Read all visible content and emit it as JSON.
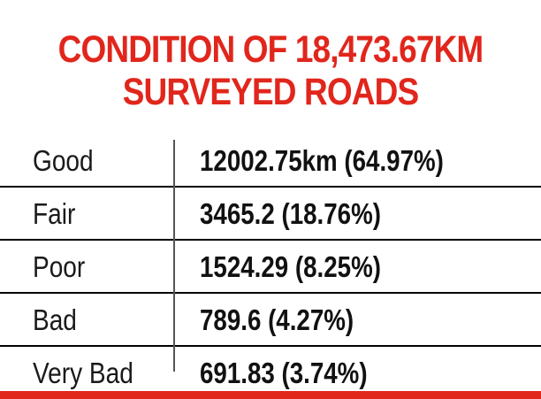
{
  "colors": {
    "accent": "#e1261c",
    "text": "#111111",
    "background": "#ffffff"
  },
  "chart_data": {
    "type": "table",
    "title_lines": [
      "CONDITION OF 18,473.67KM",
      "SURVEYED ROADS"
    ],
    "rows": [
      {
        "category": "Good",
        "display": "12002.75km (64.97%)",
        "value": 12002.75,
        "percent": 64.97
      },
      {
        "category": "Fair",
        "display": "3465.2 (18.76%)",
        "value": 3465.2,
        "percent": 18.76
      },
      {
        "category": "Poor",
        "display": "1524.29 (8.25%)",
        "value": 1524.29,
        "percent": 8.25
      },
      {
        "category": "Bad",
        "display": "789.6 (4.27%)",
        "value": 789.6,
        "percent": 4.27
      },
      {
        "category": "Very Bad",
        "display": "691.83 (3.74%)",
        "value": 691.83,
        "percent": 3.74
      }
    ]
  }
}
